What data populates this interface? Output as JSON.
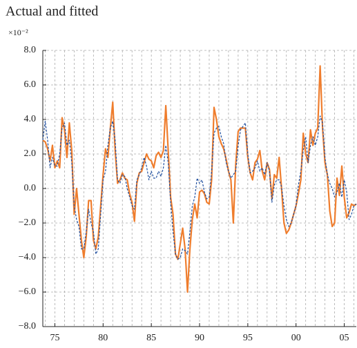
{
  "chart_data": {
    "type": "line",
    "title": "Actual and fitted",
    "y_unit": "×10⁻²",
    "x": [
      1973.75,
      1974,
      1974.25,
      1974.5,
      1974.75,
      1975,
      1975.25,
      1975.5,
      1975.75,
      1976,
      1976.25,
      1976.5,
      1976.75,
      1977,
      1977.25,
      1977.5,
      1977.75,
      1978,
      1978.25,
      1978.5,
      1978.75,
      1979,
      1979.25,
      1979.5,
      1979.75,
      1980,
      1980.25,
      1980.5,
      1980.75,
      1981,
      1981.25,
      1981.5,
      1981.75,
      1982,
      1982.25,
      1982.5,
      1982.75,
      1983,
      1983.25,
      1983.5,
      1983.75,
      1984,
      1984.25,
      1984.5,
      1984.75,
      1985,
      1985.25,
      1985.5,
      1985.75,
      1986,
      1986.25,
      1986.5,
      1986.75,
      1987,
      1987.25,
      1987.5,
      1987.75,
      1988,
      1988.25,
      1988.5,
      1988.75,
      1989,
      1989.25,
      1989.5,
      1989.75,
      1990,
      1990.25,
      1990.5,
      1990.75,
      1991,
      1991.25,
      1991.5,
      1991.75,
      1992,
      1992.25,
      1992.5,
      1992.75,
      1993,
      1993.25,
      1993.5,
      1993.75,
      1994,
      1994.25,
      1994.5,
      1994.75,
      1995,
      1995.25,
      1995.5,
      1995.75,
      1996,
      1996.25,
      1996.5,
      1996.75,
      1997,
      1997.25,
      1997.5,
      1997.75,
      1998,
      1998.25,
      1998.5,
      1998.75,
      1999,
      1999.25,
      1999.5,
      1999.75,
      2000,
      2000.25,
      2000.5,
      2000.75,
      2001,
      2001.25,
      2001.5,
      2001.75,
      2002,
      2002.25,
      2002.5,
      2002.75,
      2003,
      2003.25,
      2003.5,
      2003.75,
      2004,
      2004.25,
      2004.5,
      2004.75,
      2005,
      2005.25,
      2005.5,
      2005.75,
      2006,
      2006.25
    ],
    "series": [
      {
        "color": "#ef7d2d",
        "dash": false,
        "values": [
          2.8,
          2.7,
          2.3,
          1.6,
          2.5,
          1.2,
          1.6,
          1.2,
          4.1,
          3.4,
          1.8,
          3.8,
          2.2,
          -1.5,
          0.0,
          -1.5,
          -3.0,
          -4.0,
          -2.8,
          -0.7,
          -0.7,
          -3.0,
          -3.5,
          -2.8,
          -1.0,
          0.8,
          2.3,
          1.8,
          3.5,
          5.0,
          2.2,
          0.3,
          0.5,
          0.9,
          0.6,
          0.5,
          -0.3,
          -0.8,
          -1.9,
          0.3,
          0.9,
          1.0,
          1.5,
          2.0,
          1.7,
          1.6,
          1.2,
          1.9,
          2.1,
          1.8,
          2.2,
          4.8,
          2.2,
          -0.5,
          -1.5,
          -3.8,
          -4.1,
          -3.2,
          -2.3,
          -3.5,
          -6.0,
          -3.5,
          -1.8,
          -0.9,
          -1.7,
          -0.2,
          -0.1,
          -0.3,
          -0.8,
          -0.9,
          0.5,
          4.7,
          4.0,
          3.0,
          2.6,
          2.3,
          1.7,
          1.0,
          0.5,
          -2.0,
          1.4,
          3.3,
          3.5,
          3.5,
          3.5,
          1.8,
          0.9,
          0.5,
          1.5,
          1.7,
          2.2,
          1.0,
          0.5,
          1.5,
          1.1,
          -0.6,
          0.8,
          0.6,
          1.8,
          0.0,
          -2.0,
          -2.6,
          -2.4,
          -2.0,
          -1.5,
          -1.0,
          -0.3,
          0.5,
          3.2,
          2.0,
          1.5,
          3.4,
          2.5,
          3.2,
          3.5,
          7.1,
          3.5,
          1.5,
          0.8,
          -1.3,
          -2.2,
          -2.0,
          0.6,
          -0.4,
          1.3,
          -0.5,
          -1.7,
          -1.4,
          -0.9,
          -1.0,
          -0.9
        ]
      },
      {
        "color": "#1f4e9e",
        "dash": true,
        "values": [
          2.8,
          3.9,
          2.8,
          1.2,
          1.8,
          1.3,
          1.3,
          2.0,
          3.5,
          3.8,
          2.5,
          2.8,
          1.5,
          -1.0,
          -1.8,
          -2.2,
          -3.5,
          -3.5,
          -2.5,
          -1.2,
          -2.0,
          -2.5,
          -3.8,
          -3.5,
          -1.5,
          0.5,
          1.0,
          2.5,
          3.5,
          3.9,
          2.8,
          0.5,
          0.3,
          0.8,
          0.7,
          0.0,
          -0.5,
          -1.0,
          -1.2,
          0.5,
          0.8,
          1.2,
          1.8,
          1.3,
          0.5,
          1.0,
          0.6,
          0.6,
          1.0,
          0.7,
          1.2,
          2.5,
          1.5,
          -0.8,
          -2.5,
          -3.8,
          -4.1,
          -4.0,
          -3.5,
          -3.6,
          -3.8,
          -2.5,
          -1.0,
          -0.5,
          0.6,
          0.3,
          0.5,
          -0.2,
          -0.6,
          -0.5,
          1.0,
          3.2,
          3.5,
          3.6,
          3.0,
          2.6,
          1.5,
          1.0,
          0.6,
          0.8,
          1.0,
          2.5,
          3.4,
          3.6,
          3.8,
          2.0,
          0.9,
          1.0,
          1.2,
          1.6,
          1.0,
          1.2,
          0.8,
          1.5,
          1.0,
          -0.8,
          0.2,
          0.5,
          0.5,
          0.1,
          -1.0,
          -1.8,
          -2.2,
          -2.0,
          -1.5,
          -1.0,
          0.2,
          1.0,
          2.2,
          3.0,
          1.5,
          2.5,
          3.0,
          2.5,
          3.0,
          4.2,
          3.8,
          1.8,
          0.8,
          0.3,
          0.0,
          -0.5,
          -0.2,
          0.3,
          -0.5,
          0.5,
          -0.2,
          -1.8,
          -1.5,
          -1.0,
          -0.9
        ]
      }
    ],
    "xlim": [
      1973.75,
      2006.25
    ],
    "xticks": [
      {
        "value": 1975,
        "label": "75"
      },
      {
        "value": 1980,
        "label": "80"
      },
      {
        "value": 1985,
        "label": "85"
      },
      {
        "value": 1990,
        "label": "90"
      },
      {
        "value": 1995,
        "label": "95"
      },
      {
        "value": 2000,
        "label": "00"
      },
      {
        "value": 2005,
        "label": "05"
      }
    ],
    "xgrid": [
      1974,
      1975,
      1976,
      1977,
      1978,
      1979,
      1980,
      1981,
      1982,
      1983,
      1984,
      1985,
      1986,
      1987,
      1988,
      1989,
      1990,
      1991,
      1992,
      1993,
      1994,
      1995,
      1996,
      1997,
      1998,
      1999,
      2000,
      2001,
      2002,
      2003,
      2004,
      2005,
      2006
    ],
    "ylim": [
      -8,
      8
    ],
    "yticks": [
      {
        "value": -8,
        "label": "−8.0"
      },
      {
        "value": -6,
        "label": "−6.0"
      },
      {
        "value": -4,
        "label": "−4.0"
      },
      {
        "value": -2,
        "label": "−2.0"
      },
      {
        "value": 0,
        "label": "0.0"
      },
      {
        "value": 2,
        "label": "2.0"
      },
      {
        "value": 4,
        "label": "4.0"
      },
      {
        "value": 6,
        "label": "6.0"
      },
      {
        "value": 8,
        "label": "8.0"
      }
    ],
    "grid": true
  }
}
